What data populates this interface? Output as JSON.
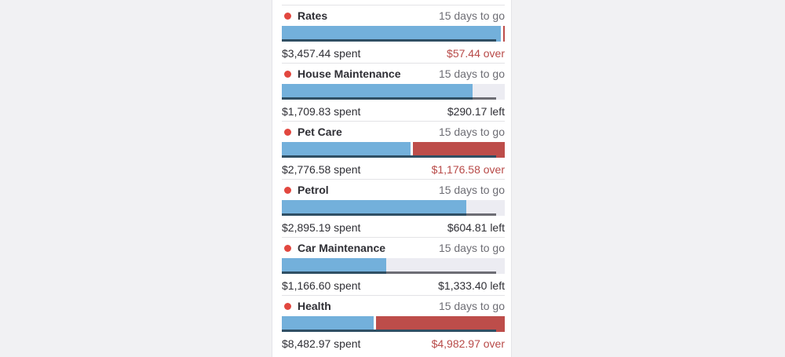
{
  "colors": {
    "category_dot": "#e2473f",
    "spent_bar": "#73b0db",
    "over_bar": "#bd4d4a",
    "track": "#ececf2",
    "over_text": "#b84a48"
  },
  "budgets": [
    {
      "name": "Rates",
      "days_label": "15 days to go",
      "spent_label": "$3,457.44 spent",
      "remaining_label": "$57.44 over",
      "status": "over",
      "spent": 3457.44,
      "budget": 3400.0
    },
    {
      "name": "House Maintenance",
      "days_label": "15 days to go",
      "spent_label": "$1,709.83 spent",
      "remaining_label": "$290.17 left",
      "status": "left",
      "spent": 1709.83,
      "budget": 2000.0
    },
    {
      "name": "Pet Care",
      "days_label": "15 days to go",
      "spent_label": "$2,776.58 spent",
      "remaining_label": "$1,176.58 over",
      "status": "over",
      "spent": 2776.58,
      "budget": 1600.0
    },
    {
      "name": "Petrol",
      "days_label": "15 days to go",
      "spent_label": "$2,895.19 spent",
      "remaining_label": "$604.81 left",
      "status": "left",
      "spent": 2895.19,
      "budget": 3500.0
    },
    {
      "name": "Car Maintenance",
      "days_label": "15 days to go",
      "spent_label": "$1,166.60 spent",
      "remaining_label": "$1,333.40 left",
      "status": "left",
      "spent": 1166.6,
      "budget": 2500.0
    },
    {
      "name": "Health",
      "days_label": "15 days to go",
      "spent_label": "$8,482.97 spent",
      "remaining_label": "$4,982.97 over",
      "status": "over",
      "spent": 8482.97,
      "budget": 3500.0
    }
  ]
}
